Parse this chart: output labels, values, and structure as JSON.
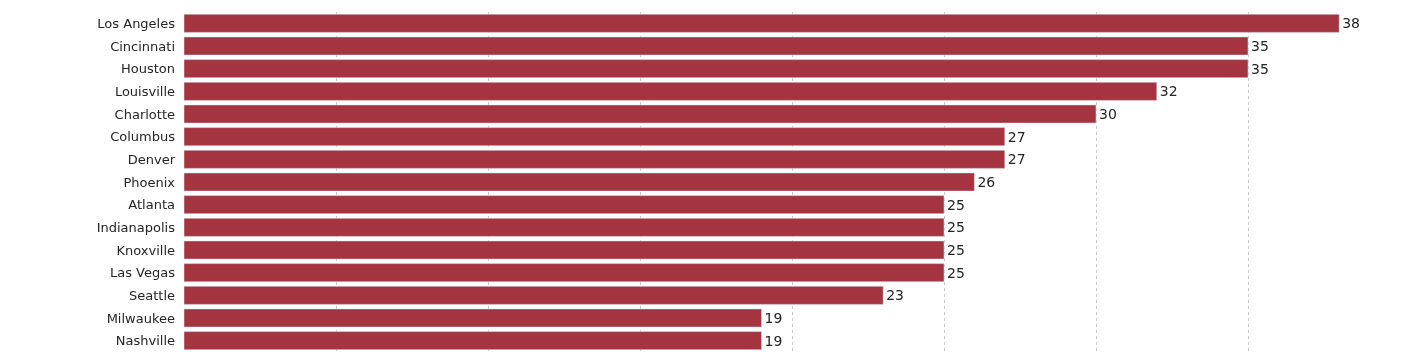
{
  "chart_data": {
    "type": "bar",
    "orientation": "horizontal",
    "categories": [
      "Los Angeles",
      "Cincinnati",
      "Houston",
      "Louisville",
      "Charlotte",
      "Columbus",
      "Denver",
      "Phoenix",
      "Atlanta",
      "Indianapolis",
      "Knoxville",
      "Las Vegas",
      "Seattle",
      "Milwaukee",
      "Nashville"
    ],
    "values": [
      38,
      35,
      35,
      32,
      30,
      27,
      27,
      26,
      25,
      25,
      25,
      25,
      23,
      19,
      19
    ],
    "color": "#a4343f",
    "xlim": [
      0,
      40
    ],
    "tick_labels": "y",
    "grid": "x",
    "data_labels": true
  }
}
